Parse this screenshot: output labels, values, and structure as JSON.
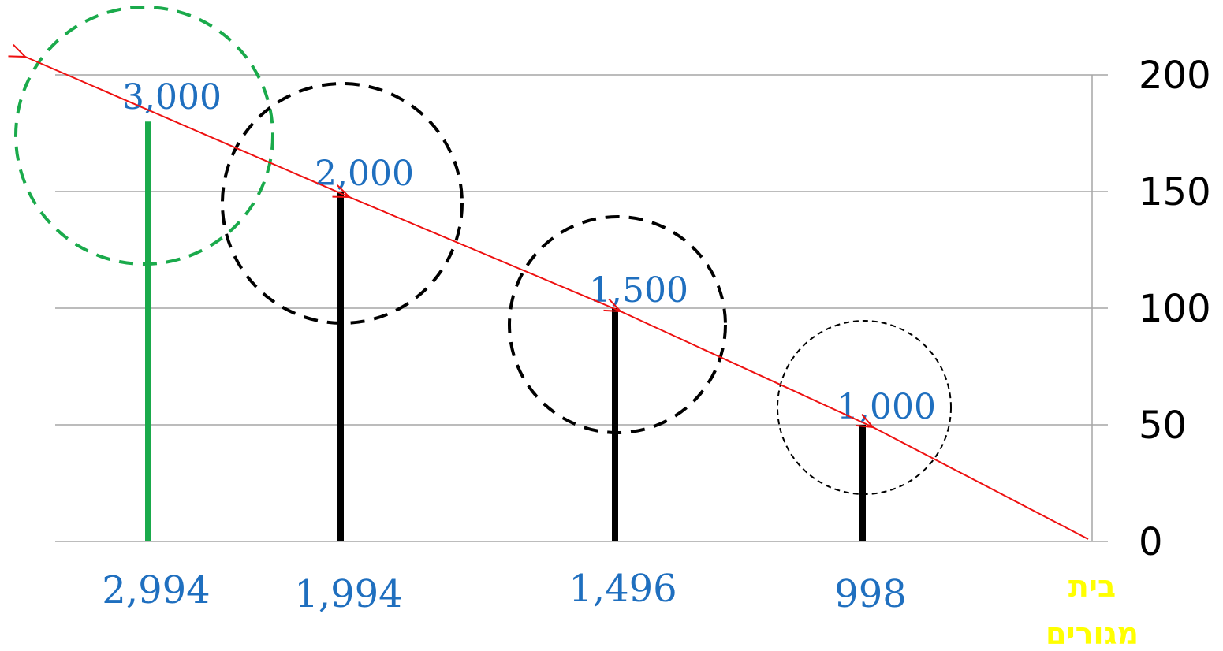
{
  "chart_data": {
    "type": "bar",
    "categories": [
      "2,994",
      "1,994",
      "1,496",
      "998"
    ],
    "values": [
      180,
      150,
      100,
      50
    ],
    "value_labels": [
      "3,000",
      "2,000",
      "1,500",
      "1,000"
    ],
    "highlight_color": "#1aaa4b",
    "bar_color": "#000000",
    "arrow_color": "#ee1111",
    "origin_label_line1": "בית",
    "origin_label_line2": "מגורים",
    "origin_label_color": "#ffff00",
    "ylim": [
      0,
      200
    ],
    "yticks": [
      0,
      50,
      100,
      150,
      200
    ],
    "y_axis_position": "right",
    "grid": true
  }
}
